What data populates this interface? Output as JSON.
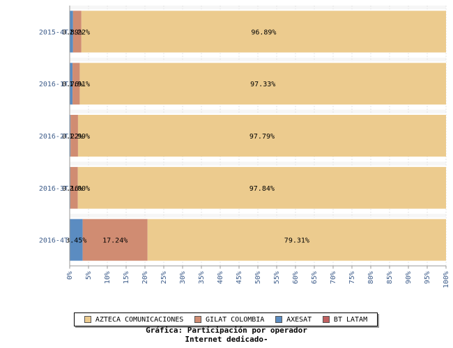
{
  "chart_data": {
    "type": "bar",
    "orientation": "horizontal",
    "stacked": true,
    "normalized_percent": true,
    "categories": [
      "2015-4T",
      "2016-1T",
      "2016-2T",
      "2016-3T",
      "2016-4T"
    ],
    "series": [
      {
        "name": "AXESAT",
        "color": "#5b8cc1",
        "values": [
          0.89,
          0.76,
          0.22,
          0.16,
          3.45
        ]
      },
      {
        "name": "GILAT COLOMBIA",
        "color": "#d08c72",
        "values": [
          2.22,
          1.91,
          1.99,
          2.0,
          17.24
        ]
      },
      {
        "name": "AZTECA COMUNICACIONES",
        "color": "#eccb8e",
        "values": [
          96.89,
          97.33,
          97.79,
          97.84,
          79.31
        ]
      },
      {
        "name": "BT LATAM",
        "color": "#c06060",
        "values": [
          0,
          0,
          0,
          0,
          0
        ]
      }
    ],
    "data_labels": [
      [
        "0.89%",
        "2.22%",
        "96.89%"
      ],
      [
        "0.76%",
        "1.91%",
        "97.33%"
      ],
      [
        "0.22%",
        "1.99%",
        "97.79%"
      ],
      [
        "0.16%",
        "2.00%",
        "97.84%"
      ],
      [
        "3.45%",
        "17.24%",
        "79.31%"
      ]
    ],
    "x_ticks": [
      "0%",
      "5%",
      "10%",
      "15%",
      "20%",
      "25%",
      "30%",
      "35%",
      "40%",
      "45%",
      "50%",
      "55%",
      "60%",
      "65%",
      "70%",
      "75%",
      "80%",
      "85%",
      "90%",
      "95%",
      "100%"
    ],
    "xlim": [
      0,
      100
    ],
    "grid": true,
    "legend_position": "bottom",
    "title": "Gráfica: Participación por operador Internet dedicado-"
  },
  "legend": [
    {
      "label": "AZTECA COMUNICACIONES",
      "color": "#eccb8e"
    },
    {
      "label": "GILAT COLOMBIA",
      "color": "#d08c72"
    },
    {
      "label": "AXESAT",
      "color": "#5b8cc1"
    },
    {
      "label": "BT LATAM",
      "color": "#c06060"
    }
  ],
  "caption": {
    "line1": "Gráfica: Participación por operador",
    "line2": "Internet dedicado-"
  }
}
